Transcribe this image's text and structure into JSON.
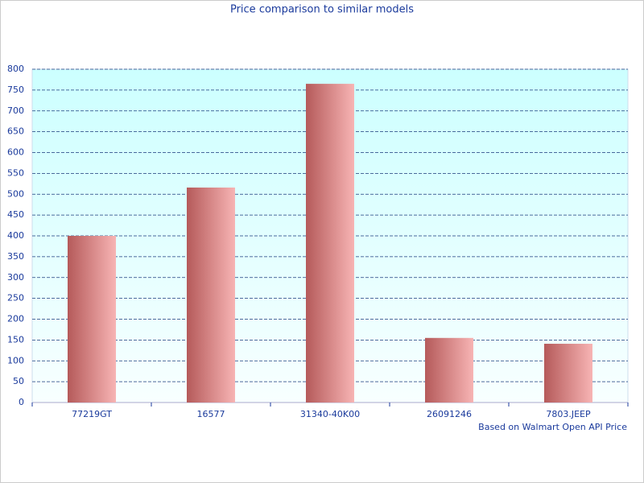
{
  "chart_data": {
    "type": "bar",
    "title": "Price comparison to similar models",
    "annotation": "Based on Walmart Open API Price",
    "categories": [
      "77219GT",
      "16577",
      "31340-40K00",
      "26091246",
      "7803.JEEP"
    ],
    "values": [
      400,
      516,
      765,
      155,
      141
    ],
    "color": "#f7b4b4",
    "ylim": [
      0,
      800
    ],
    "yticks": [
      0,
      50,
      100,
      150,
      200,
      250,
      300,
      350,
      400,
      450,
      500,
      550,
      600,
      650,
      700,
      750,
      800
    ],
    "grid": true
  }
}
